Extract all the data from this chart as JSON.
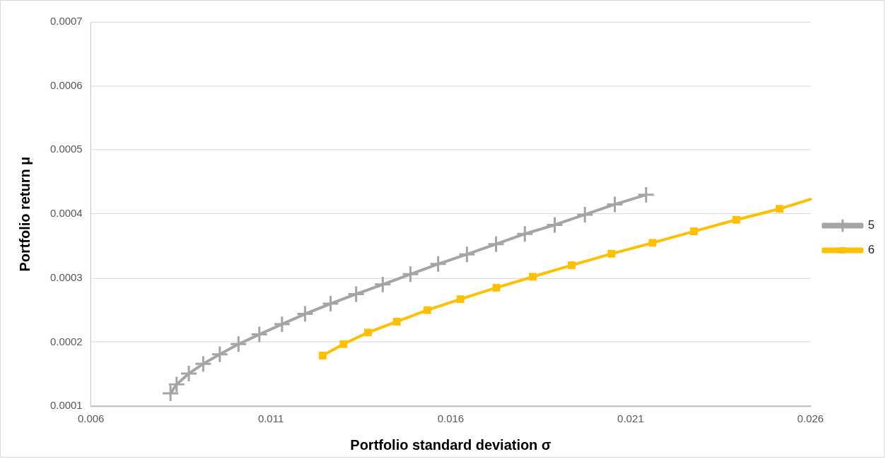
{
  "chart_data": {
    "type": "line",
    "xlabel": "Portfolio standard deviation σ",
    "ylabel": "Portfolio return μ",
    "xlim": [
      0.006,
      0.026
    ],
    "ylim": [
      0.0001,
      0.0007
    ],
    "xticks": [
      0.006,
      0.011,
      0.016,
      0.021,
      0.026
    ],
    "yticks": [
      0.0001,
      0.0002,
      0.0003,
      0.0004,
      0.0005,
      0.0006,
      0.0007
    ],
    "grid": "y",
    "legend": "right",
    "line_style": "solid",
    "series": [
      {
        "name": "5",
        "color": "#a5a5a5",
        "marker": "cross",
        "x": [
          0.00821,
          0.00838,
          0.00872,
          0.00912,
          0.00958,
          0.0101,
          0.01068,
          0.01131,
          0.01195,
          0.01266,
          0.01337,
          0.01411,
          0.01488,
          0.01565,
          0.01645,
          0.01726,
          0.01806,
          0.01889,
          0.01973,
          0.02056,
          0.02143
        ],
        "values": [
          0.00012,
          0.000134,
          0.000151,
          0.000166,
          0.000181,
          0.000197,
          0.000212,
          0.000228,
          0.000244,
          0.00026,
          0.000275,
          0.00029,
          0.000306,
          0.000322,
          0.000337,
          0.000353,
          0.000369,
          0.000383,
          0.000399,
          0.000415,
          0.00043
        ]
      },
      {
        "name": "6",
        "color": "#ffc000",
        "marker": "square",
        "x": [
          0.01244,
          0.01302,
          0.0137,
          0.0145,
          0.01535,
          0.01627,
          0.01727,
          0.01828,
          0.01936,
          0.02047,
          0.02161,
          0.02276,
          0.02394,
          0.02514,
          0.026
        ],
        "values": [
          0.000179,
          0.000197,
          0.000215,
          0.000232,
          0.00025,
          0.000267,
          0.000285,
          0.000302,
          0.00032,
          0.000338,
          0.000355,
          0.000373,
          0.000391,
          0.000408,
          0.000423
        ]
      }
    ]
  }
}
